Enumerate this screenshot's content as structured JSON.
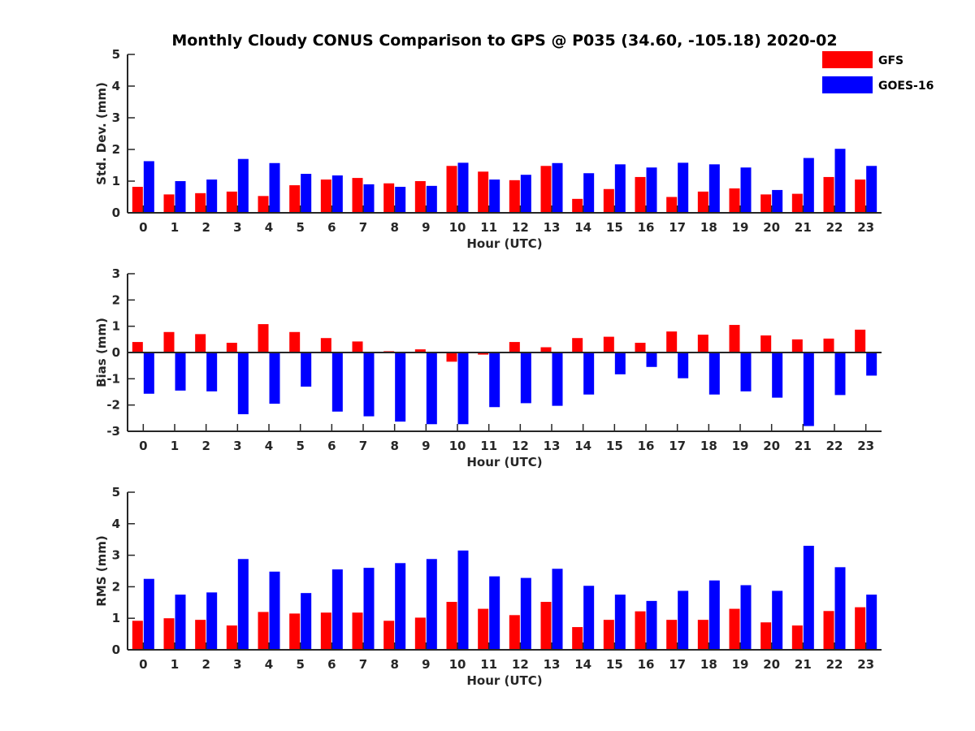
{
  "figure_title": "Monthly Cloudy CONUS Comparison to GPS @ P035 (34.60, -105.18) 2020-02",
  "colors": {
    "GFS": "#ff0000",
    "GOES-16": "#0000ff",
    "axis": "#262626"
  },
  "legend": {
    "placement": "top-right",
    "entries": [
      "GFS",
      "GOES-16"
    ]
  },
  "chart_data": [
    {
      "type": "bar",
      "title": "Monthly Cloudy CONUS Comparison to GPS @ P035 (34.60, -105.18) 2020-02",
      "xlabel": "Hour (UTC)",
      "ylabel": "Std. Dev. (mm)",
      "ylim": [
        0,
        5
      ],
      "yticks": [
        "0",
        "1",
        "2",
        "3",
        "4",
        "5"
      ],
      "categories": [
        "0",
        "1",
        "2",
        "3",
        "4",
        "5",
        "6",
        "7",
        "8",
        "9",
        "10",
        "11",
        "12",
        "13",
        "14",
        "15",
        "16",
        "17",
        "18",
        "19",
        "20",
        "21",
        "22",
        "23"
      ],
      "series": [
        {
          "name": "GFS",
          "values": [
            0.82,
            0.58,
            0.62,
            0.67,
            0.53,
            0.87,
            1.05,
            1.1,
            0.93,
            1.0,
            1.48,
            1.3,
            1.03,
            1.48,
            0.44,
            0.75,
            1.13,
            0.5,
            0.67,
            0.77,
            0.58,
            0.6,
            1.13,
            1.05
          ]
        },
        {
          "name": "GOES-16",
          "values": [
            1.63,
            1.0,
            1.05,
            1.7,
            1.57,
            1.23,
            1.18,
            0.9,
            0.82,
            0.85,
            1.58,
            1.05,
            1.2,
            1.57,
            1.25,
            1.53,
            1.43,
            1.58,
            1.53,
            1.43,
            0.72,
            1.73,
            2.02,
            1.48
          ]
        }
      ]
    },
    {
      "type": "bar",
      "xlabel": "Hour (UTC)",
      "ylabel": "Bias (mm)",
      "ylim": [
        -3,
        3
      ],
      "yticks": [
        "-3",
        "-2",
        "-1",
        "0",
        "1",
        "2",
        "3"
      ],
      "categories": [
        "0",
        "1",
        "2",
        "3",
        "4",
        "5",
        "6",
        "7",
        "8",
        "9",
        "10",
        "11",
        "12",
        "13",
        "14",
        "15",
        "16",
        "17",
        "18",
        "19",
        "20",
        "21",
        "22",
        "23"
      ],
      "series": [
        {
          "name": "GFS",
          "values": [
            0.4,
            0.78,
            0.7,
            0.37,
            1.08,
            0.78,
            0.55,
            0.42,
            0.05,
            0.12,
            -0.35,
            -0.08,
            0.4,
            0.2,
            0.55,
            0.6,
            0.37,
            0.8,
            0.68,
            1.05,
            0.65,
            0.5,
            0.53,
            0.87
          ]
        },
        {
          "name": "GOES-16",
          "values": [
            -1.57,
            -1.45,
            -1.48,
            -2.35,
            -1.95,
            -1.3,
            -2.25,
            -2.43,
            -2.63,
            -2.73,
            -2.73,
            -2.08,
            -1.93,
            -2.03,
            -1.6,
            -0.83,
            -0.55,
            -0.98,
            -1.6,
            -1.48,
            -1.72,
            -2.8,
            -1.62,
            -0.88
          ]
        }
      ]
    },
    {
      "type": "bar",
      "xlabel": "Hour (UTC)",
      "ylabel": "RMS (mm)",
      "ylim": [
        0,
        5
      ],
      "yticks": [
        "0",
        "1",
        "2",
        "3",
        "4",
        "5"
      ],
      "categories": [
        "0",
        "1",
        "2",
        "3",
        "4",
        "5",
        "6",
        "7",
        "8",
        "9",
        "10",
        "11",
        "12",
        "13",
        "14",
        "15",
        "16",
        "17",
        "18",
        "19",
        "20",
        "21",
        "22",
        "23"
      ],
      "series": [
        {
          "name": "GFS",
          "values": [
            0.92,
            1.0,
            0.95,
            0.77,
            1.2,
            1.15,
            1.18,
            1.18,
            0.92,
            1.02,
            1.52,
            1.3,
            1.1,
            1.52,
            0.72,
            0.95,
            1.22,
            0.95,
            0.95,
            1.3,
            0.87,
            0.77,
            1.23,
            1.35
          ]
        },
        {
          "name": "GOES-16",
          "values": [
            2.25,
            1.75,
            1.82,
            2.88,
            2.48,
            1.8,
            2.55,
            2.6,
            2.75,
            2.88,
            3.15,
            2.33,
            2.28,
            2.57,
            2.03,
            1.75,
            1.55,
            1.87,
            2.2,
            2.05,
            1.87,
            3.3,
            2.62,
            1.75
          ]
        }
      ]
    }
  ]
}
